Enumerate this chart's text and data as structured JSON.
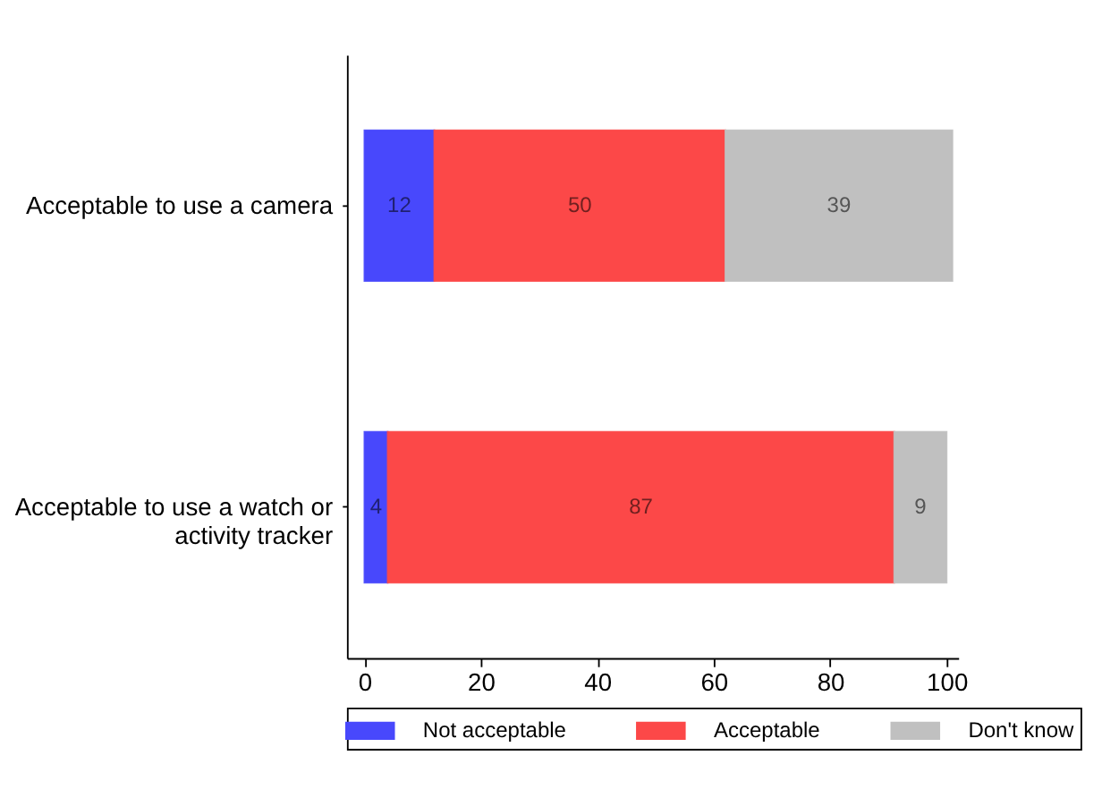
{
  "chart_data": {
    "type": "bar",
    "orientation": "horizontal",
    "stacked": true,
    "data_labels": true,
    "legend": "bottom",
    "grid": false,
    "categories": [
      "Acceptable to use a camera",
      "Acceptable to use a watch or activity tracker"
    ],
    "series": [
      {
        "name": "Not acceptable",
        "color": "#4848fc",
        "values": [
          12,
          4
        ]
      },
      {
        "name": "Acceptable",
        "color": "#fc4848",
        "values": [
          50,
          87
        ]
      },
      {
        "name": "Don't know",
        "color": "#c0c0c0",
        "values": [
          39,
          9
        ]
      }
    ],
    "xlim": [
      -3,
      102
    ],
    "xticks": [
      0,
      20,
      40,
      60,
      80,
      100
    ]
  }
}
